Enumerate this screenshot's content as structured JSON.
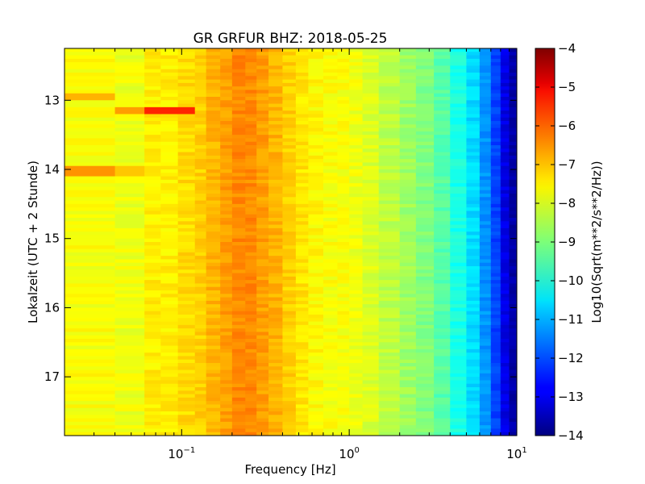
{
  "chart_data": {
    "type": "heatmap",
    "title": "GR GRFUR BHZ: 2018-05-25",
    "xlabel": "Frequency [Hz]",
    "ylabel": "Lokalzeit (UTC + 2 Stunde)",
    "xscale": "log",
    "xlim": [
      0.02,
      10
    ],
    "ylim": [
      12.25,
      17.85
    ],
    "y_inverted": true,
    "x_ticks": [
      {
        "value": 0.1,
        "base": "10",
        "exp": "−1"
      },
      {
        "value": 1,
        "base": "10",
        "exp": "0"
      },
      {
        "value": 10,
        "base": "10",
        "exp": "1"
      }
    ],
    "y_ticks": [
      {
        "value": 13,
        "label": "13"
      },
      {
        "value": 14,
        "label": "14"
      },
      {
        "value": 15,
        "label": "15"
      },
      {
        "value": 16,
        "label": "16"
      },
      {
        "value": 17,
        "label": "17"
      }
    ],
    "colorbar": {
      "label": "Log10(Sqrt(m**2/s**2/Hz))",
      "range": [
        -14,
        -4
      ],
      "colormap": "jet",
      "ticks": [
        "−4",
        "−5",
        "−6",
        "−7",
        "−8",
        "−9",
        "−10",
        "−11",
        "−12",
        "−13",
        "−14"
      ]
    },
    "frequency_bins_hz": [
      0.02,
      0.04,
      0.06,
      0.075,
      0.095,
      0.12,
      0.14,
      0.17,
      0.2,
      0.24,
      0.28,
      0.33,
      0.4,
      0.48,
      0.57,
      0.7,
      0.85,
      1.0,
      1.2,
      1.5,
      2.0,
      2.5,
      3.2,
      4.0,
      5.0,
      6.0,
      7.0,
      8.0,
      9.0
    ],
    "mean_spectrum_log10": [
      -7.8,
      -7.9,
      -7.6,
      -7.6,
      -7.4,
      -7.3,
      -7.0,
      -6.8,
      -6.6,
      -6.6,
      -6.8,
      -7.0,
      -7.3,
      -7.5,
      -7.7,
      -7.8,
      -7.8,
      -7.9,
      -8.1,
      -8.4,
      -8.7,
      -9.0,
      -9.4,
      -10.0,
      -10.6,
      -11.3,
      -12.1,
      -13.0,
      -13.6
    ],
    "anomalies": [
      {
        "time": 12.95,
        "freq_range": [
          0.02,
          0.04
        ],
        "log10": -7.0
      },
      {
        "time": 13.15,
        "freq_range": [
          0.04,
          0.06
        ],
        "log10": -6.8
      },
      {
        "time": 13.15,
        "freq_range": [
          0.06,
          0.12
        ],
        "log10": -5.6
      },
      {
        "time": 14.02,
        "freq_range": [
          0.02,
          0.04
        ],
        "log10": -6.7
      },
      {
        "time": 14.02,
        "freq_range": [
          0.04,
          0.06
        ],
        "log10": -7.2
      }
    ]
  }
}
